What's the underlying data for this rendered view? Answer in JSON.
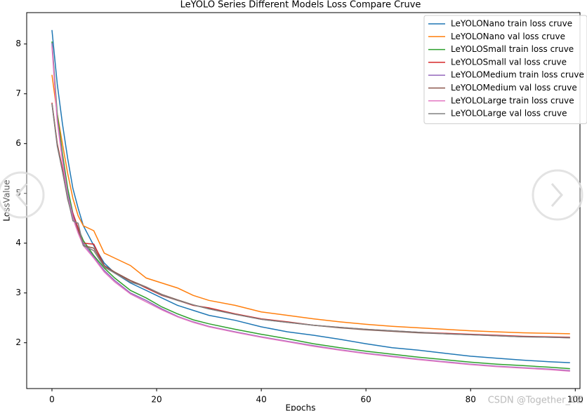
{
  "chart_data": {
    "type": "line",
    "title": "LeYOLO Series Different Models Loss Compare Cruve",
    "xlabel": "Epochs",
    "ylabel": "LossValue",
    "x": [
      0,
      1,
      2,
      3,
      4,
      5,
      6,
      8,
      10,
      12,
      15,
      18,
      21,
      24,
      27,
      30,
      35,
      40,
      45,
      50,
      55,
      60,
      65,
      70,
      75,
      80,
      85,
      90,
      95,
      99
    ],
    "series": [
      {
        "name": "LeYOLONano train loss cruve",
        "color": "#1f77b4",
        "values": [
          8.28,
          7.2,
          6.4,
          5.7,
          5.1,
          4.7,
          4.35,
          3.95,
          3.6,
          3.4,
          3.2,
          3.05,
          2.9,
          2.75,
          2.65,
          2.55,
          2.45,
          2.32,
          2.22,
          2.15,
          2.07,
          1.98,
          1.9,
          1.85,
          1.79,
          1.73,
          1.69,
          1.65,
          1.62,
          1.6
        ]
      },
      {
        "name": "LeYOLONano val loss cruve",
        "color": "#ff7f0e",
        "values": [
          7.38,
          6.6,
          6.0,
          5.4,
          4.9,
          4.55,
          4.35,
          4.25,
          3.8,
          3.7,
          3.55,
          3.3,
          3.2,
          3.1,
          2.95,
          2.85,
          2.75,
          2.62,
          2.55,
          2.48,
          2.42,
          2.37,
          2.33,
          2.3,
          2.27,
          2.24,
          2.22,
          2.2,
          2.19,
          2.18
        ]
      },
      {
        "name": "LeYOLOSmall train loss cruve",
        "color": "#2ca02c",
        "values": [
          8.05,
          6.6,
          5.8,
          5.1,
          4.6,
          4.3,
          4.05,
          3.75,
          3.5,
          3.3,
          3.05,
          2.9,
          2.72,
          2.58,
          2.46,
          2.38,
          2.27,
          2.17,
          2.08,
          1.98,
          1.9,
          1.83,
          1.77,
          1.71,
          1.66,
          1.61,
          1.57,
          1.54,
          1.51,
          1.48
        ]
      },
      {
        "name": "LeYOLOSmall val loss cruve",
        "color": "#d62728",
        "values": [
          6.82,
          6.0,
          5.5,
          4.9,
          4.6,
          4.3,
          4.0,
          3.98,
          3.55,
          3.4,
          3.25,
          3.1,
          2.95,
          2.85,
          2.75,
          2.7,
          2.58,
          2.48,
          2.42,
          2.35,
          2.31,
          2.27,
          2.24,
          2.21,
          2.19,
          2.17,
          2.15,
          2.13,
          2.12,
          2.11
        ]
      },
      {
        "name": "LeYOLOMedium train loss cruve",
        "color": "#9467bd",
        "values": [
          8.02,
          6.5,
          5.7,
          5.0,
          4.55,
          4.25,
          4.0,
          3.72,
          3.45,
          3.25,
          3.0,
          2.85,
          2.68,
          2.53,
          2.42,
          2.33,
          2.22,
          2.12,
          2.03,
          1.94,
          1.86,
          1.79,
          1.73,
          1.67,
          1.62,
          1.57,
          1.53,
          1.5,
          1.47,
          1.44
        ]
      },
      {
        "name": "LeYOLOMedium val loss cruve",
        "color": "#8c564b",
        "values": [
          6.8,
          5.98,
          5.45,
          4.88,
          4.5,
          4.25,
          3.95,
          3.9,
          3.55,
          3.42,
          3.25,
          3.12,
          2.97,
          2.86,
          2.76,
          2.68,
          2.57,
          2.47,
          2.41,
          2.35,
          2.3,
          2.26,
          2.23,
          2.2,
          2.18,
          2.16,
          2.14,
          2.12,
          2.11,
          2.1
        ]
      },
      {
        "name": "LeYOLOLarge train loss cruve",
        "color": "#e377c2",
        "values": [
          7.95,
          6.45,
          5.65,
          4.95,
          4.5,
          4.2,
          3.95,
          3.7,
          3.42,
          3.22,
          2.98,
          2.82,
          2.66,
          2.52,
          2.41,
          2.32,
          2.21,
          2.11,
          2.02,
          1.93,
          1.85,
          1.78,
          1.72,
          1.66,
          1.61,
          1.56,
          1.52,
          1.49,
          1.46,
          1.43
        ]
      },
      {
        "name": "LeYOLOLarge val loss cruve",
        "color": "#7f7f7f",
        "values": [
          6.8,
          5.95,
          5.45,
          4.9,
          4.45,
          4.4,
          3.95,
          3.85,
          3.52,
          3.4,
          3.22,
          3.12,
          2.96,
          2.85,
          2.76,
          2.68,
          2.57,
          2.47,
          2.41,
          2.35,
          2.31,
          2.27,
          2.24,
          2.21,
          2.18,
          2.16,
          2.14,
          2.12,
          2.11,
          2.1
        ]
      }
    ],
    "xlim": [
      -4.83,
      100.9
    ],
    "ylim": [
      1.08,
      8.63
    ],
    "xticks": [
      0,
      20,
      40,
      60,
      80,
      100
    ],
    "yticks": [
      2,
      3,
      4,
      5,
      6,
      7,
      8
    ],
    "legend": "upper right",
    "watermark": "CSDN @Together_CZ"
  }
}
